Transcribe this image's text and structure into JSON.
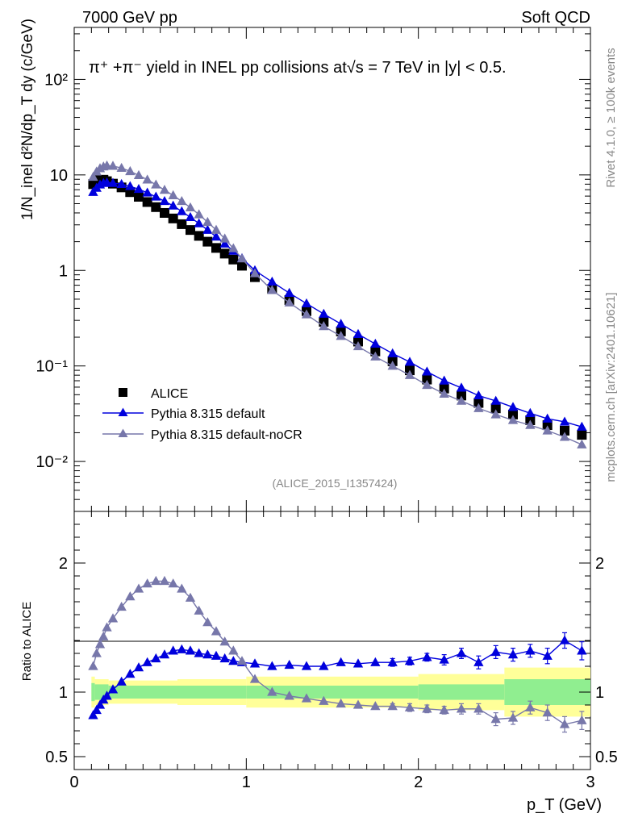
{
  "header": {
    "left": "7000 GeV pp",
    "right": "Soft QCD"
  },
  "side_labels": {
    "rivet": "Rivet 4.1.0, ≥ 100k events",
    "mcplots": "mcplots.cern.ch [arXiv:2401.10621]"
  },
  "chart_data": {
    "type": "scatter",
    "title": "π⁺ +π⁻ yield in INEL pp collisions at√s = 7 TeV in |y| < 0.5.",
    "analysis_tag": "(ALICE_2015_I1357424)",
    "xlabel": "p_T (GeV)",
    "ylabel": "1/N_inel d²N/dp_T dy (c/GeV)",
    "ratio_ylabel": "Ratio to ALICE",
    "xlim": [
      0,
      3
    ],
    "ylim": [
      0.003,
      350
    ],
    "yscale": "log",
    "ratio_ylim": [
      0.4,
      2.4
    ],
    "x_ticks": [
      "0",
      "1",
      "2",
      "3"
    ],
    "y_ticks": [
      "10⁻²",
      "10⁻¹",
      "1",
      "10",
      "10²"
    ],
    "ratio_ticks": [
      "0.5",
      "1",
      "2"
    ],
    "legend": {
      "position": "lower-left",
      "entries": [
        "ALICE",
        "Pythia 8.315 default",
        "Pythia 8.315 default-noCR"
      ]
    },
    "series": [
      {
        "name": "ALICE",
        "color": "#000000",
        "marker": "square",
        "x": [
          0.11,
          0.13,
          0.15,
          0.17,
          0.19,
          0.225,
          0.275,
          0.325,
          0.375,
          0.425,
          0.475,
          0.525,
          0.575,
          0.625,
          0.675,
          0.725,
          0.775,
          0.825,
          0.875,
          0.925,
          0.975,
          1.05,
          1.15,
          1.25,
          1.35,
          1.45,
          1.55,
          1.65,
          1.75,
          1.85,
          1.95,
          2.05,
          2.15,
          2.25,
          2.35,
          2.45,
          2.55,
          2.65,
          2.75,
          2.85,
          2.95
        ],
        "values": [
          8.0,
          8.5,
          8.8,
          8.9,
          8.6,
          8.1,
          7.4,
          6.6,
          5.9,
          5.2,
          4.6,
          4.0,
          3.5,
          3.05,
          2.65,
          2.3,
          2.0,
          1.72,
          1.5,
          1.3,
          1.12,
          0.85,
          0.64,
          0.49,
          0.375,
          0.29,
          0.23,
          0.18,
          0.142,
          0.112,
          0.09,
          0.072,
          0.058,
          0.049,
          0.041,
          0.036,
          0.031,
          0.027,
          0.024,
          0.021,
          0.019
        ]
      },
      {
        "name": "Pythia 8.315 default",
        "color": "#0000dd",
        "marker": "triangle",
        "x": [
          0.11,
          0.13,
          0.15,
          0.17,
          0.19,
          0.225,
          0.275,
          0.325,
          0.375,
          0.425,
          0.475,
          0.525,
          0.575,
          0.625,
          0.675,
          0.725,
          0.775,
          0.825,
          0.875,
          0.925,
          0.975,
          1.05,
          1.15,
          1.25,
          1.35,
          1.45,
          1.55,
          1.65,
          1.75,
          1.85,
          1.95,
          2.05,
          2.15,
          2.25,
          2.35,
          2.45,
          2.55,
          2.65,
          2.75,
          2.85,
          2.95
        ],
        "values": [
          6.6,
          7.3,
          7.9,
          8.2,
          8.3,
          8.2,
          8.0,
          7.6,
          7.1,
          6.5,
          5.9,
          5.3,
          4.75,
          4.15,
          3.6,
          3.1,
          2.65,
          2.25,
          1.9,
          1.6,
          1.34,
          1.0,
          0.76,
          0.58,
          0.45,
          0.35,
          0.275,
          0.215,
          0.17,
          0.135,
          0.11,
          0.087,
          0.07,
          0.059,
          0.049,
          0.043,
          0.037,
          0.032,
          0.028,
          0.026,
          0.023
        ],
        "ratio": [
          0.82,
          0.86,
          0.9,
          0.94,
          0.97,
          1.02,
          1.08,
          1.14,
          1.19,
          1.23,
          1.26,
          1.29,
          1.32,
          1.33,
          1.32,
          1.3,
          1.29,
          1.28,
          1.26,
          1.24,
          1.23,
          1.22,
          1.2,
          1.21,
          1.2,
          1.2,
          1.23,
          1.22,
          1.23,
          1.23,
          1.24,
          1.27,
          1.25,
          1.3,
          1.23,
          1.31,
          1.29,
          1.32,
          1.28,
          1.4,
          1.32
        ],
        "ratio_err": [
          0,
          0,
          0,
          0,
          0,
          0,
          0,
          0,
          0,
          0,
          0,
          0,
          0,
          0,
          0,
          0,
          0,
          0,
          0,
          0,
          0,
          0,
          0,
          0,
          0,
          0,
          0,
          0,
          0,
          0.03,
          0.03,
          0.03,
          0.04,
          0.04,
          0.05,
          0.05,
          0.05,
          0.05,
          0.06,
          0.06,
          0.07
        ]
      },
      {
        "name": "Pythia 8.315 default-noCR",
        "color": "#7777aa",
        "marker": "triangle",
        "x": [
          0.11,
          0.13,
          0.15,
          0.17,
          0.19,
          0.225,
          0.275,
          0.325,
          0.375,
          0.425,
          0.475,
          0.525,
          0.575,
          0.625,
          0.675,
          0.725,
          0.775,
          0.825,
          0.875,
          0.925,
          0.975,
          1.05,
          1.15,
          1.25,
          1.35,
          1.45,
          1.55,
          1.65,
          1.75,
          1.85,
          1.95,
          2.05,
          2.15,
          2.25,
          2.35,
          2.45,
          2.55,
          2.65,
          2.75,
          2.85,
          2.95
        ],
        "values": [
          9.5,
          10.8,
          11.7,
          12.2,
          12.5,
          12.4,
          11.8,
          10.9,
          9.9,
          8.9,
          7.9,
          6.95,
          6.1,
          5.3,
          4.55,
          3.85,
          3.2,
          2.65,
          2.15,
          1.7,
          1.33,
          0.93,
          0.62,
          0.46,
          0.345,
          0.26,
          0.205,
          0.16,
          0.125,
          0.1,
          0.08,
          0.063,
          0.051,
          0.043,
          0.036,
          0.031,
          0.027,
          0.024,
          0.021,
          0.018,
          0.015
        ],
        "ratio": [
          1.2,
          1.3,
          1.37,
          1.43,
          1.5,
          1.57,
          1.66,
          1.74,
          1.8,
          1.84,
          1.86,
          1.86,
          1.84,
          1.8,
          1.73,
          1.63,
          1.54,
          1.47,
          1.39,
          1.32,
          1.24,
          1.1,
          1.0,
          0.97,
          0.95,
          0.93,
          0.91,
          0.9,
          0.89,
          0.89,
          0.88,
          0.87,
          0.86,
          0.87,
          0.87,
          0.79,
          0.8,
          0.88,
          0.84,
          0.75,
          0.78
        ],
        "ratio_err": [
          0,
          0,
          0,
          0,
          0,
          0,
          0,
          0,
          0,
          0,
          0,
          0,
          0,
          0,
          0,
          0,
          0,
          0,
          0,
          0,
          0,
          0,
          0,
          0,
          0,
          0,
          0,
          0,
          0,
          0.02,
          0.03,
          0.03,
          0.03,
          0.04,
          0.04,
          0.05,
          0.05,
          0.05,
          0.06,
          0.06,
          0.07
        ]
      }
    ],
    "ratio_bands": {
      "x_edges": [
        0.1,
        0.12,
        0.2,
        0.6,
        1.0,
        2.0,
        2.5,
        3.0
      ],
      "inner_half_width": [
        0.07,
        0.06,
        0.05,
        0.05,
        0.05,
        0.06,
        0.1,
        0.12
      ],
      "outer_half_width": [
        0.12,
        0.1,
        0.09,
        0.1,
        0.12,
        0.14,
        0.19,
        0.2
      ],
      "inner_color": "#90ee90",
      "outer_color": "#ffff99"
    }
  }
}
